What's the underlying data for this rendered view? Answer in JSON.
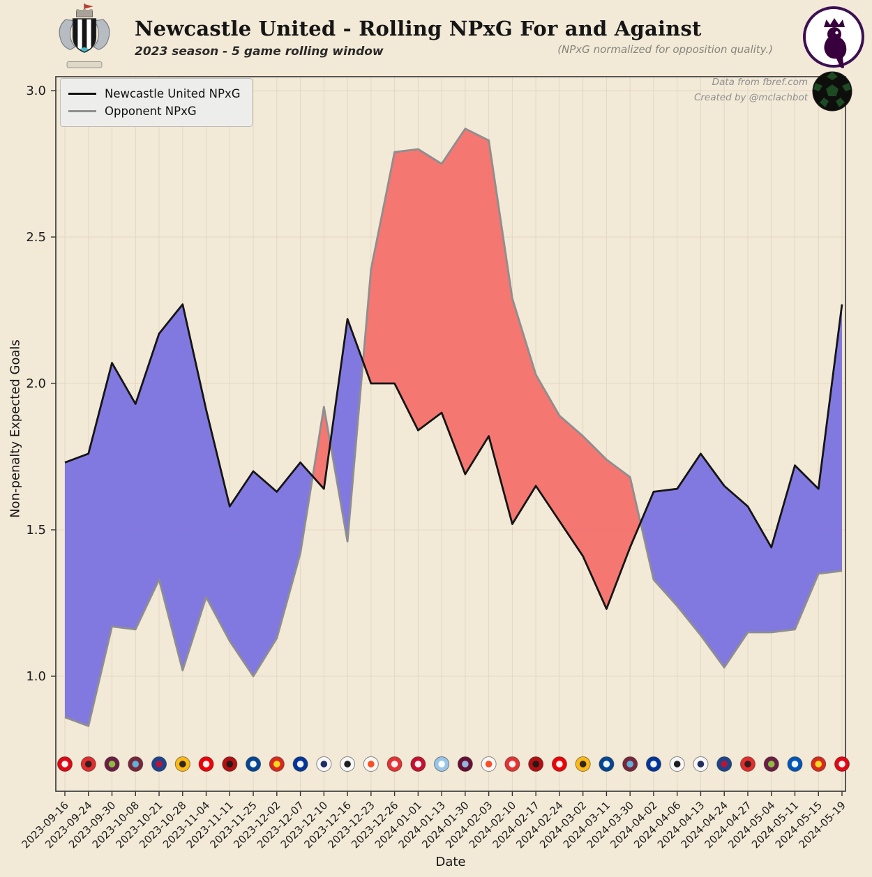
{
  "header": {
    "crest_icon": "newcastle-united-crest",
    "league_icon": "premier-league-logo"
  },
  "attribution": {
    "line1": "Data from fbref.com",
    "line2": "Created by @mclachbot",
    "ball_icon": "soccer-ball-icon"
  },
  "colors": {
    "background": "#f2e9d7",
    "fill_newcastle_better": "#7b73e0",
    "fill_opponent_better": "#f3716d",
    "newcastle_line": "#151515",
    "opponent_line": "#8e8e8e",
    "grid": "#ddd2ba",
    "spine": "#333333",
    "premier_league_purple": "#38003c"
  },
  "chart_data": {
    "type": "line",
    "title": "Newcastle United - Rolling NPxG For and Against",
    "subtitle": "2023 season - 5 game rolling window",
    "note": "(NPxG normalized for opposition quality.)",
    "xlabel": "Date",
    "ylabel": "Non-penalty Expected Goals",
    "ylim": [
      0.6,
      3.05
    ],
    "yticks": [
      1.0,
      1.5,
      2.0,
      2.5,
      3.0
    ],
    "grid": true,
    "legend_position": "upper left",
    "categories": [
      "2023-09-16",
      "2023-09-24",
      "2023-09-30",
      "2023-10-08",
      "2023-10-21",
      "2023-10-28",
      "2023-11-04",
      "2023-11-11",
      "2023-11-25",
      "2023-12-02",
      "2023-12-07",
      "2023-12-10",
      "2023-12-16",
      "2023-12-23",
      "2023-12-26",
      "2024-01-01",
      "2024-01-13",
      "2024-01-30",
      "2024-02-03",
      "2024-02-10",
      "2024-02-17",
      "2024-02-24",
      "2024-03-02",
      "2024-03-11",
      "2024-03-30",
      "2024-04-02",
      "2024-04-06",
      "2024-04-13",
      "2024-04-24",
      "2024-04-27",
      "2024-05-04",
      "2024-05-11",
      "2024-05-15",
      "2024-05-19"
    ],
    "series": [
      {
        "name": "Newcastle United NPxG",
        "color": "#151515",
        "values": [
          1.73,
          1.76,
          2.07,
          1.93,
          2.17,
          2.27,
          1.91,
          1.58,
          1.7,
          1.63,
          1.73,
          1.64,
          2.22,
          2.0,
          2.0,
          1.84,
          1.9,
          1.69,
          1.82,
          1.52,
          1.65,
          1.53,
          1.41,
          1.23,
          1.44,
          1.63,
          1.64,
          1.76,
          1.65,
          1.58,
          1.44,
          1.72,
          1.64,
          2.27
        ]
      },
      {
        "name": "Opponent NPxG",
        "color": "#8e8e8e",
        "values": [
          0.86,
          0.83,
          1.17,
          1.16,
          1.33,
          1.02,
          1.27,
          1.12,
          1.0,
          1.13,
          1.42,
          1.92,
          1.46,
          2.39,
          2.79,
          2.8,
          2.75,
          2.87,
          2.83,
          2.29,
          2.03,
          1.89,
          1.82,
          1.74,
          1.68,
          1.33,
          1.24,
          1.14,
          1.03,
          1.15,
          1.15,
          1.16,
          1.35,
          1.36
        ]
      }
    ],
    "opponent_logos": [
      {
        "team": "Brentford",
        "c1": "#e30613",
        "c2": "#ffffff"
      },
      {
        "team": "Sheffield United",
        "c1": "#e52b2b",
        "c2": "#241f20"
      },
      {
        "team": "Burnley",
        "c1": "#6c1d45",
        "c2": "#8cc63f"
      },
      {
        "team": "West Ham",
        "c1": "#7a263a",
        "c2": "#5cb8e4"
      },
      {
        "team": "Crystal Palace",
        "c1": "#1b458f",
        "c2": "#c4122e"
      },
      {
        "team": "Wolves",
        "c1": "#fdb913",
        "c2": "#231f20"
      },
      {
        "team": "Arsenal",
        "c1": "#ef0107",
        "c2": "#ffffff"
      },
      {
        "team": "Bournemouth",
        "c1": "#b50e12",
        "c2": "#1a1a1a"
      },
      {
        "team": "Chelsea",
        "c1": "#034694",
        "c2": "#ffffff"
      },
      {
        "team": "Manchester United",
        "c1": "#da291c",
        "c2": "#fbe122"
      },
      {
        "team": "Everton",
        "c1": "#00369c",
        "c2": "#ffffff"
      },
      {
        "team": "Tottenham",
        "c1": "#f7f7f7",
        "c2": "#132257"
      },
      {
        "team": "Fulham",
        "c1": "#f7f7f7",
        "c2": "#111111"
      },
      {
        "team": "Luton Town",
        "c1": "#f7f7f7",
        "c2": "#fa4616"
      },
      {
        "team": "Nottingham Forest",
        "c1": "#e53233",
        "c2": "#ffffff"
      },
      {
        "team": "Liverpool",
        "c1": "#c8102e",
        "c2": "#ffffff"
      },
      {
        "team": "Manchester City",
        "c1": "#98c5e9",
        "c2": "#ffffff"
      },
      {
        "team": "Aston Villa",
        "c1": "#670e36",
        "c2": "#95bfe5"
      },
      {
        "team": "Luton Town",
        "c1": "#f7f7f7",
        "c2": "#fa4616"
      },
      {
        "team": "Nottingham Forest",
        "c1": "#e53233",
        "c2": "#ffffff"
      },
      {
        "team": "Bournemouth",
        "c1": "#b50e12",
        "c2": "#1a1a1a"
      },
      {
        "team": "Arsenal",
        "c1": "#ef0107",
        "c2": "#ffffff"
      },
      {
        "team": "Wolves",
        "c1": "#fdb913",
        "c2": "#231f20"
      },
      {
        "team": "Chelsea",
        "c1": "#034694",
        "c2": "#ffffff"
      },
      {
        "team": "West Ham",
        "c1": "#7a263a",
        "c2": "#5cb8e4"
      },
      {
        "team": "Everton",
        "c1": "#00369c",
        "c2": "#ffffff"
      },
      {
        "team": "Fulham",
        "c1": "#f7f7f7",
        "c2": "#111111"
      },
      {
        "team": "Tottenham",
        "c1": "#f7f7f7",
        "c2": "#132257"
      },
      {
        "team": "Crystal Palace",
        "c1": "#1b458f",
        "c2": "#c4122e"
      },
      {
        "team": "Sheffield United",
        "c1": "#e52b2b",
        "c2": "#241f20"
      },
      {
        "team": "Burnley",
        "c1": "#6c1d45",
        "c2": "#8cc63f"
      },
      {
        "team": "Brighton",
        "c1": "#0057b8",
        "c2": "#ffffff"
      },
      {
        "team": "Manchester United",
        "c1": "#da291c",
        "c2": "#fbe122"
      },
      {
        "team": "Brentford",
        "c1": "#e30613",
        "c2": "#ffffff"
      }
    ]
  }
}
